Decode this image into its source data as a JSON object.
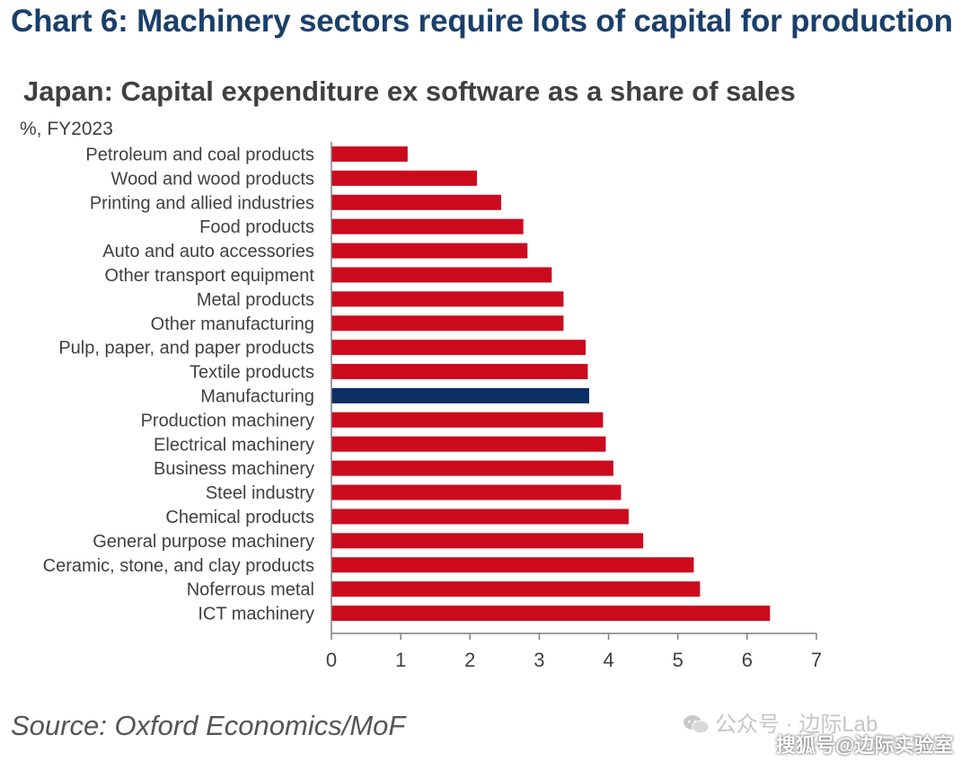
{
  "page": {
    "title": "Chart 6: Machinery sectors require lots of capital for production",
    "source": "Source: Oxford Economics/MoF",
    "watermark_primary": "公众号 · 边际Lab",
    "watermark_secondary": "搜狐号@边际实验室"
  },
  "chart_data": {
    "type": "bar",
    "orientation": "horizontal",
    "title": "Japan: Capital expenditure ex software as a share of sales",
    "unit_label": "%, FY2023",
    "xlabel": "",
    "ylabel": "",
    "xlim": [
      0,
      7
    ],
    "xticks": [
      0,
      1,
      2,
      3,
      4,
      5,
      6,
      7
    ],
    "grid": false,
    "categories": [
      "Petroleum and coal products",
      "Wood and wood products",
      "Printing and allied industries",
      "Food products",
      "Auto and auto accessories",
      "Other transport equipment",
      "Metal products",
      "Other manufacturing",
      "Pulp, paper, and paper products",
      "Textile products",
      "Manufacturing",
      "Production machinery",
      "Electrical machinery",
      "Business machinery",
      "Steel industry",
      "Chemical products",
      "General purpose machinery",
      "Ceramic, stone, and clay products",
      "Noferrous metal",
      "ICT machinery"
    ],
    "values": [
      1.1,
      2.1,
      2.45,
      2.77,
      2.83,
      3.18,
      3.35,
      3.35,
      3.67,
      3.7,
      3.72,
      3.92,
      3.96,
      4.07,
      4.18,
      4.29,
      4.5,
      5.23,
      5.32,
      6.33
    ],
    "highlight_category": "Manufacturing",
    "colors": {
      "default": "#cc0a1e",
      "highlight": "#0b2f64",
      "axis": "#7f7f7f",
      "text": "#404040"
    }
  }
}
